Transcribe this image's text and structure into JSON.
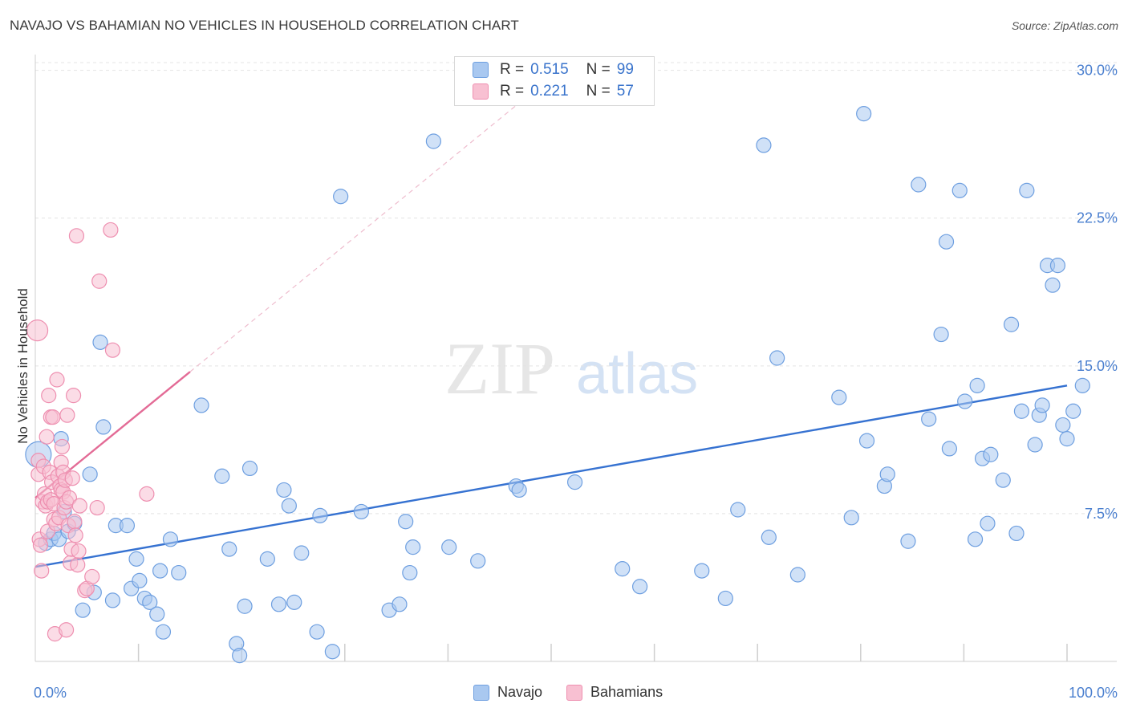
{
  "title": "NAVAJO VS BAHAMIAN NO VEHICLES IN HOUSEHOLD CORRELATION CHART",
  "source": "Source: ZipAtlas.com",
  "watermark": {
    "zip": "ZIP",
    "atlas": "atlas"
  },
  "legend": {
    "r_label": "R =",
    "n_label": "N =",
    "rows": [
      {
        "r": "0.515",
        "n": "99",
        "fill": "#a9c8f0",
        "stroke": "#6e9fe0"
      },
      {
        "r": "0.221",
        "n": "57",
        "fill": "#f8c0d2",
        "stroke": "#ee8fb0"
      }
    ]
  },
  "bottom_legend": [
    "Navajo",
    "Bahamians"
  ],
  "chart_data": {
    "type": "scatter",
    "title": "NAVAJO VS BAHAMIAN NO VEHICLES IN HOUSEHOLD CORRELATION CHART",
    "xlabel": "",
    "ylabel": "No Vehicles in Household",
    "xlim": [
      0,
      100
    ],
    "ylim": [
      0,
      30.8
    ],
    "x_tick_labels": [
      "0.0%",
      "100.0%"
    ],
    "y_ticks": [
      7.5,
      15.0,
      22.5,
      30.0
    ],
    "y_tick_labels": [
      "7.5%",
      "15.0%",
      "22.5%",
      "30.0%"
    ],
    "grid": true,
    "series": [
      {
        "name": "Navajo",
        "color": "#6e9fe0",
        "fill": "#a9c8f0",
        "trend": {
          "x": [
            0,
            100
          ],
          "y": [
            4.8,
            14.0
          ],
          "color": "#3672d1"
        },
        "points": [
          [
            0.3,
            10.5
          ],
          [
            1.0,
            6.0
          ],
          [
            1.5,
            6.2
          ],
          [
            1.8,
            6.5
          ],
          [
            2.3,
            6.2
          ],
          [
            2.5,
            11.3
          ],
          [
            2.8,
            7.6
          ],
          [
            3.2,
            6.6
          ],
          [
            3.8,
            7.0
          ],
          [
            4.6,
            2.6
          ],
          [
            5.3,
            9.5
          ],
          [
            5.7,
            3.5
          ],
          [
            6.3,
            16.2
          ],
          [
            6.6,
            11.9
          ],
          [
            7.5,
            3.1
          ],
          [
            7.8,
            6.9
          ],
          [
            8.9,
            6.9
          ],
          [
            9.3,
            3.7
          ],
          [
            9.8,
            5.2
          ],
          [
            10.1,
            4.1
          ],
          [
            10.6,
            3.2
          ],
          [
            11.1,
            3.0
          ],
          [
            11.8,
            2.4
          ],
          [
            12.1,
            4.6
          ],
          [
            12.4,
            1.5
          ],
          [
            13.1,
            6.2
          ],
          [
            13.9,
            4.5
          ],
          [
            16.1,
            13.0
          ],
          [
            18.1,
            9.4
          ],
          [
            18.8,
            5.7
          ],
          [
            19.5,
            0.9
          ],
          [
            19.8,
            0.3
          ],
          [
            20.3,
            2.8
          ],
          [
            20.8,
            9.8
          ],
          [
            22.5,
            5.2
          ],
          [
            23.6,
            2.9
          ],
          [
            24.1,
            8.7
          ],
          [
            24.6,
            7.9
          ],
          [
            25.1,
            3.0
          ],
          [
            25.8,
            5.5
          ],
          [
            27.3,
            1.5
          ],
          [
            27.6,
            7.4
          ],
          [
            28.8,
            0.5
          ],
          [
            29.6,
            23.6
          ],
          [
            31.6,
            7.6
          ],
          [
            34.3,
            2.6
          ],
          [
            35.3,
            2.9
          ],
          [
            35.9,
            7.1
          ],
          [
            36.3,
            4.5
          ],
          [
            36.6,
            5.8
          ],
          [
            38.6,
            26.4
          ],
          [
            40.1,
            5.8
          ],
          [
            42.9,
            5.1
          ],
          [
            46.6,
            8.9
          ],
          [
            46.9,
            8.7
          ],
          [
            52.3,
            9.1
          ],
          [
            56.9,
            4.7
          ],
          [
            58.6,
            3.8
          ],
          [
            64.6,
            4.6
          ],
          [
            66.9,
            3.2
          ],
          [
            68.1,
            7.7
          ],
          [
            70.6,
            26.2
          ],
          [
            71.1,
            6.3
          ],
          [
            71.9,
            15.4
          ],
          [
            73.9,
            4.4
          ],
          [
            77.9,
            13.4
          ],
          [
            79.1,
            7.3
          ],
          [
            80.3,
            27.8
          ],
          [
            80.6,
            11.2
          ],
          [
            82.3,
            8.9
          ],
          [
            82.6,
            9.5
          ],
          [
            84.6,
            6.1
          ],
          [
            85.6,
            24.2
          ],
          [
            86.6,
            12.3
          ],
          [
            87.8,
            16.6
          ],
          [
            88.3,
            21.3
          ],
          [
            88.6,
            10.8
          ],
          [
            89.6,
            23.9
          ],
          [
            90.1,
            13.2
          ],
          [
            91.1,
            6.2
          ],
          [
            91.3,
            14.0
          ],
          [
            91.8,
            10.3
          ],
          [
            92.3,
            7.0
          ],
          [
            92.6,
            10.5
          ],
          [
            93.8,
            9.2
          ],
          [
            94.6,
            17.1
          ],
          [
            95.1,
            6.5
          ],
          [
            95.6,
            12.7
          ],
          [
            96.1,
            23.9
          ],
          [
            96.9,
            11.0
          ],
          [
            97.3,
            12.5
          ],
          [
            97.6,
            13.0
          ],
          [
            98.1,
            20.1
          ],
          [
            98.6,
            19.1
          ],
          [
            99.1,
            20.1
          ],
          [
            99.6,
            12.0
          ],
          [
            100.0,
            11.3
          ],
          [
            100.6,
            12.7
          ],
          [
            101.5,
            14.0
          ]
        ]
      },
      {
        "name": "Bahamians",
        "color": "#ee8fb0",
        "fill": "#f8c0d2",
        "trend": {
          "x": [
            0,
            15
          ],
          "y": [
            8.3,
            14.7
          ],
          "color": "#e36b96",
          "extended": {
            "x": [
              15,
              47.5
            ],
            "y": [
              14.7,
              28.6
            ]
          }
        },
        "points": [
          [
            0.2,
            16.8
          ],
          [
            0.3,
            10.2
          ],
          [
            0.3,
            9.5
          ],
          [
            0.4,
            6.2
          ],
          [
            0.5,
            5.9
          ],
          [
            0.6,
            4.6
          ],
          [
            0.7,
            8.1
          ],
          [
            0.8,
            9.9
          ],
          [
            0.9,
            8.5
          ],
          [
            1.0,
            7.9
          ],
          [
            1.1,
            11.4
          ],
          [
            1.2,
            8.1
          ],
          [
            1.2,
            6.6
          ],
          [
            1.3,
            13.5
          ],
          [
            1.4,
            9.6
          ],
          [
            1.5,
            8.2
          ],
          [
            1.5,
            12.4
          ],
          [
            1.6,
            9.1
          ],
          [
            1.7,
            12.4
          ],
          [
            1.8,
            8.0
          ],
          [
            1.8,
            7.2
          ],
          [
            1.9,
            1.4
          ],
          [
            2.0,
            7.0
          ],
          [
            2.1,
            14.3
          ],
          [
            2.2,
            9.4
          ],
          [
            2.3,
            7.3
          ],
          [
            2.4,
            8.9
          ],
          [
            2.5,
            10.1
          ],
          [
            2.5,
            8.7
          ],
          [
            2.6,
            10.9
          ],
          [
            2.7,
            9.6
          ],
          [
            2.7,
            8.6
          ],
          [
            2.8,
            7.8
          ],
          [
            2.9,
            9.2
          ],
          [
            3.0,
            8.1
          ],
          [
            3.0,
            1.6
          ],
          [
            3.1,
            12.5
          ],
          [
            3.2,
            6.9
          ],
          [
            3.3,
            8.3
          ],
          [
            3.4,
            5.0
          ],
          [
            3.5,
            5.7
          ],
          [
            3.6,
            9.3
          ],
          [
            3.7,
            13.5
          ],
          [
            3.8,
            7.1
          ],
          [
            3.9,
            6.4
          ],
          [
            4.0,
            21.6
          ],
          [
            4.1,
            4.9
          ],
          [
            4.2,
            5.6
          ],
          [
            4.3,
            7.9
          ],
          [
            4.8,
            3.6
          ],
          [
            5.0,
            3.7
          ],
          [
            5.5,
            4.3
          ],
          [
            6.0,
            7.8
          ],
          [
            6.2,
            19.3
          ],
          [
            7.3,
            21.9
          ],
          [
            7.5,
            15.8
          ],
          [
            10.8,
            8.5
          ]
        ]
      }
    ]
  }
}
